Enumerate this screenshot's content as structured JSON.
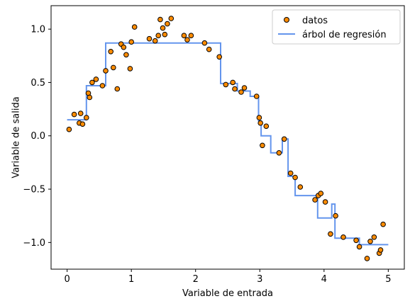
{
  "chart_data": {
    "type": "scatter",
    "xlabel": "Variable de entrada",
    "ylabel": "Variable de salida",
    "xlim": [
      -0.25,
      5.25
    ],
    "ylim": [
      -1.25,
      1.22
    ],
    "xticks": [
      0,
      1,
      2,
      3,
      4,
      5
    ],
    "xtick_labels": [
      "0",
      "1",
      "2",
      "3",
      "4",
      "5"
    ],
    "yticks": [
      -1.0,
      -0.5,
      0.0,
      0.5,
      1.0
    ],
    "ytick_labels": [
      "−1.0",
      "−0.5",
      "0.0",
      "0.5",
      "1.0"
    ],
    "grid": false,
    "legend_position": "top-right",
    "series": [
      {
        "name": "datos",
        "kind": "scatter",
        "color": "#ff8c00",
        "edgecolor": "#000000",
        "x": [
          0.03,
          0.11,
          0.19,
          0.21,
          0.24,
          0.3,
          0.33,
          0.35,
          0.39,
          0.45,
          0.55,
          0.6,
          0.68,
          0.72,
          0.78,
          0.84,
          0.88,
          0.92,
          0.98,
          1.0,
          1.05,
          1.28,
          1.37,
          1.42,
          1.45,
          1.49,
          1.52,
          1.56,
          1.62,
          1.82,
          1.87,
          1.93,
          2.14,
          2.21,
          2.37,
          2.47,
          2.58,
          2.61,
          2.71,
          2.76,
          2.95,
          2.99,
          3.01,
          3.04,
          3.1,
          3.3,
          3.38,
          3.48,
          3.55,
          3.63,
          3.86,
          3.91,
          3.95,
          4.02,
          4.1,
          4.18,
          4.3,
          4.5,
          4.55,
          4.67,
          4.72,
          4.78,
          4.86,
          4.88,
          4.92
        ],
        "y": [
          0.06,
          0.2,
          0.12,
          0.21,
          0.11,
          0.17,
          0.4,
          0.36,
          0.5,
          0.53,
          0.47,
          0.61,
          0.79,
          0.64,
          0.44,
          0.86,
          0.83,
          0.76,
          0.63,
          0.88,
          1.02,
          0.91,
          0.89,
          0.94,
          1.09,
          1.01,
          0.95,
          1.05,
          1.1,
          0.94,
          0.9,
          0.94,
          0.87,
          0.81,
          0.74,
          0.48,
          0.5,
          0.44,
          0.41,
          0.45,
          0.37,
          0.17,
          0.12,
          -0.09,
          0.09,
          -0.16,
          -0.03,
          -0.35,
          -0.39,
          -0.48,
          -0.6,
          -0.56,
          -0.54,
          -0.62,
          -0.92,
          -0.75,
          -0.95,
          -0.98,
          -1.04,
          -1.15,
          -0.99,
          -0.95,
          -1.1,
          -1.07,
          -0.83
        ]
      },
      {
        "name": "árbol de regresión",
        "kind": "step-line",
        "color": "#6495ed",
        "x": [
          0.0,
          0.3,
          0.3,
          0.6,
          0.6,
          2.39,
          2.39,
          2.65,
          2.65,
          2.85,
          2.85,
          2.98,
          2.98,
          3.02,
          3.02,
          3.17,
          3.17,
          3.35,
          3.35,
          3.44,
          3.44,
          3.55,
          3.55,
          3.9,
          3.9,
          4.12,
          4.12,
          4.17,
          4.17,
          4.55,
          4.55,
          5.0
        ],
        "y": [
          0.15,
          0.15,
          0.47,
          0.47,
          0.87,
          0.87,
          0.49,
          0.49,
          0.42,
          0.42,
          0.37,
          0.37,
          0.14,
          0.14,
          0.0,
          0.0,
          -0.16,
          -0.16,
          -0.03,
          -0.03,
          -0.38,
          -0.38,
          -0.56,
          -0.56,
          -0.77,
          -0.77,
          -0.64,
          -0.64,
          -0.96,
          -0.96,
          -1.02,
          -1.02
        ]
      }
    ]
  }
}
